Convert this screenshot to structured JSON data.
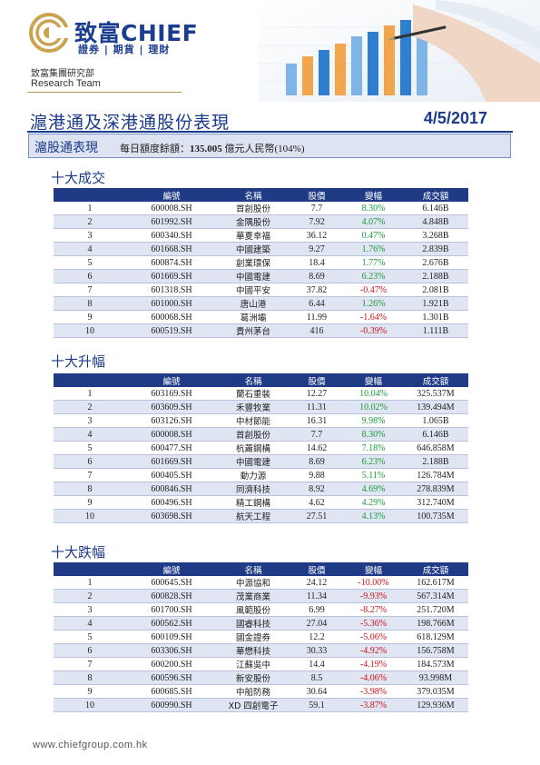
{
  "header": {
    "brand_cn": "致富",
    "brand_en": "CHIEF",
    "brand_sub": "證券 | 期貨 | 理財",
    "group_name": "致富集團研究部",
    "team": "Research Team"
  },
  "title": {
    "text": "滬港通及深港通股份表現",
    "date": "4/5/2017"
  },
  "quota": {
    "label": "滬股通表現",
    "prefix": "每日額度餘額：",
    "amount": "135.005",
    "suffix": " 億元人民幣(104%)"
  },
  "columns": [
    "編號",
    "名稱",
    "股價",
    "變幅",
    "成交額"
  ],
  "sections": [
    {
      "title": "十大成交",
      "rows": [
        [
          "1",
          "600008.SH",
          "首創股份",
          "7.7",
          "8.30%",
          "6.146B"
        ],
        [
          "2",
          "601992.SH",
          "金隅股份",
          "7.92",
          "4.07%",
          "4.848B"
        ],
        [
          "3",
          "600340.SH",
          "華夏幸福",
          "36.12",
          "0.47%",
          "3.268B"
        ],
        [
          "4",
          "601668.SH",
          "中國建築",
          "9.27",
          "1.76%",
          "2.839B"
        ],
        [
          "5",
          "600874.SH",
          "創業環保",
          "18.4",
          "1.77%",
          "2.676B"
        ],
        [
          "6",
          "601669.SH",
          "中國電建",
          "8.69",
          "6.23%",
          "2.188B"
        ],
        [
          "7",
          "601318.SH",
          "中國平安",
          "37.82",
          "-0.47%",
          "2.081B"
        ],
        [
          "8",
          "601000.SH",
          "唐山港",
          "6.44",
          "1.26%",
          "1.921B"
        ],
        [
          "9",
          "600068.SH",
          "葛洲壩",
          "11.99",
          "-1.64%",
          "1.301B"
        ],
        [
          "10",
          "600519.SH",
          "貴州茅台",
          "416",
          "-0.39%",
          "1.111B"
        ]
      ]
    },
    {
      "title": "十大升幅",
      "rows": [
        [
          "1",
          "603169.SH",
          "蘭石重裝",
          "12.27",
          "10.04%",
          "325.537M"
        ],
        [
          "2",
          "603609.SH",
          "禾豐牧業",
          "11.31",
          "10.02%",
          "139.494M"
        ],
        [
          "3",
          "603126.SH",
          "中材節能",
          "16.31",
          "9.98%",
          "1.065B"
        ],
        [
          "4",
          "600008.SH",
          "首創股份",
          "7.7",
          "8.30%",
          "6.146B"
        ],
        [
          "5",
          "600477.SH",
          "杭蕭鋼構",
          "14.62",
          "7.18%",
          "646.858M"
        ],
        [
          "6",
          "601669.SH",
          "中國電建",
          "8.69",
          "6.23%",
          "2.188B"
        ],
        [
          "7",
          "600405.SH",
          "動力源",
          "9.88",
          "5.11%",
          "126.784M"
        ],
        [
          "8",
          "600846.SH",
          "同濟科技",
          "8.92",
          "4.69%",
          "278.839M"
        ],
        [
          "9",
          "600496.SH",
          "精工鋼構",
          "4.62",
          "4.29%",
          "312.740M"
        ],
        [
          "10",
          "603698.SH",
          "航天工程",
          "27.51",
          "4.13%",
          "100.735M"
        ]
      ]
    },
    {
      "title": "十大跌幅",
      "rows": [
        [
          "1",
          "600645.SH",
          "中源協和",
          "24.12",
          "-10.00%",
          "162.617M"
        ],
        [
          "2",
          "600828.SH",
          "茂業商業",
          "11.34",
          "-9.93%",
          "567.314M"
        ],
        [
          "3",
          "601700.SH",
          "風範股份",
          "6.99",
          "-8.27%",
          "251.720M"
        ],
        [
          "4",
          "600562.SH",
          "國睿科技",
          "27.04",
          "-5.36%",
          "198.766M"
        ],
        [
          "5",
          "600109.SH",
          "國金證券",
          "12.2",
          "-5.06%",
          "618.129M"
        ],
        [
          "6",
          "603306.SH",
          "華懋科技",
          "30.33",
          "-4.92%",
          "156.758M"
        ],
        [
          "7",
          "600200.SH",
          "江蘇吳中",
          "14.4",
          "-4.19%",
          "184.573M"
        ],
        [
          "8",
          "600596.SH",
          "新安股份",
          "8.5",
          "-4.06%",
          "93.998M"
        ],
        [
          "9",
          "600685.SH",
          "中船防務",
          "30.64",
          "-3.98%",
          "379.035M"
        ],
        [
          "10",
          "600990.SH",
          "XD 四創電子",
          "59.1",
          "-3.87%",
          "129.936M"
        ]
      ]
    }
  ],
  "footer": {
    "url": "www.chiefgroup.com.hk"
  },
  "colors": {
    "brand_blue": "#1a3d8f",
    "header_row": "#1f3b85",
    "alt_row": "#dfe5f2",
    "positive": "#1a9a3a",
    "negative": "#d0121b",
    "logo_gold": "#c9a34f"
  }
}
